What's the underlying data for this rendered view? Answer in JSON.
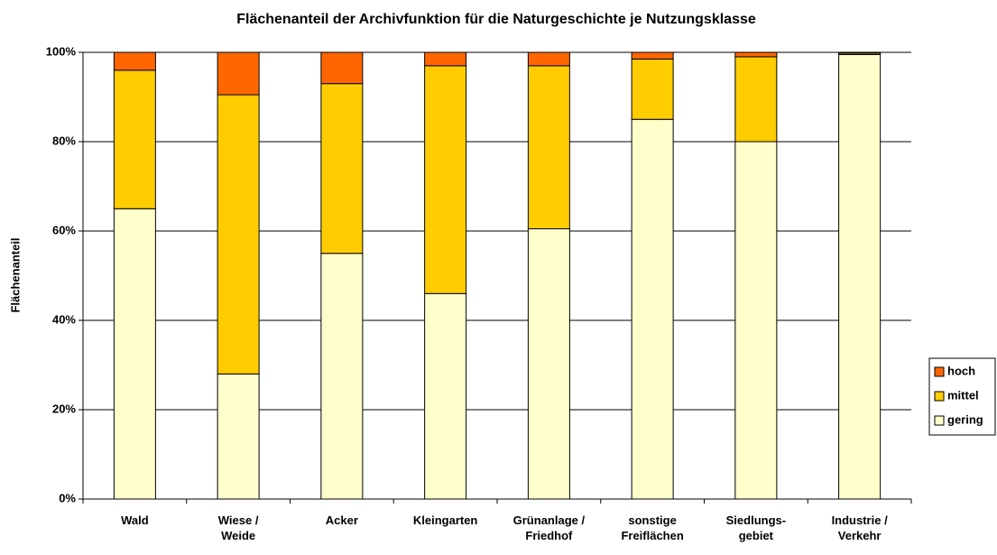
{
  "chart_data": {
    "type": "stacked_bar",
    "title": "Flächenanteil der Archivfunktion für die Naturgeschichte je Nutzungsklasse",
    "y_label": "Flächenanteil",
    "categories": [
      "Wald",
      "Wiese / Weide",
      "Acker",
      "Kleingarten",
      "Grünanlage / Friedhof",
      "sonstige Freiflächen",
      "Siedlungs-gebiet",
      "Industrie / Verkehr"
    ],
    "series": [
      {
        "name": "gering",
        "color": "#ffffcc",
        "values": [
          65,
          28,
          55,
          46,
          60.5,
          85,
          80,
          99.5
        ]
      },
      {
        "name": "mittel",
        "color": "#ffcc00",
        "values": [
          31,
          62.5,
          38,
          51,
          36.5,
          13.5,
          19,
          0.3
        ]
      },
      {
        "name": "hoch",
        "color": "#ff6600",
        "values": [
          4,
          9.5,
          7,
          3,
          3,
          1.5,
          1,
          0.2
        ]
      }
    ],
    "ylim": [
      0,
      100
    ],
    "yticks": [
      {
        "value": 0,
        "label": "0%"
      },
      {
        "value": 20,
        "label": "20%"
      },
      {
        "value": 40,
        "label": "40%"
      },
      {
        "value": 60,
        "label": "60%"
      },
      {
        "value": 80,
        "label": "80%"
      },
      {
        "value": 100,
        "label": "100%"
      }
    ],
    "grid": true,
    "legend": "right"
  }
}
